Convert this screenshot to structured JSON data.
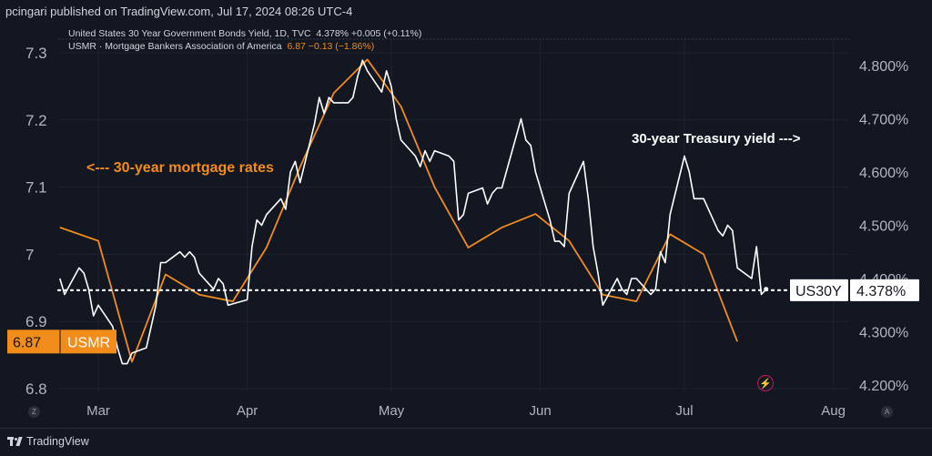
{
  "header": {
    "published": "pcingari published on TradingView.com, Jul 17, 2024 08:26 UTC-4"
  },
  "legend": {
    "us30y_name": "United States 30 Year Government Bonds Yield, 1D, TVC",
    "us30y_value": "4.378% +0.005 (+0.11%)",
    "usmr_name": "USMR · Mortgage Bankers Association of America",
    "usmr_value": "6.87 −0.13 (−1.86%)"
  },
  "annotations": {
    "mortgage": "<--- 30-year mortgage rates",
    "treasury": "30-year Treasury yield --->"
  },
  "badges": {
    "usmr_value": "6.87",
    "usmr_label": "USMR",
    "us30y_label": "US30Y",
    "us30y_value": "4.378%"
  },
  "footer": {
    "brand": "TradingView"
  },
  "corner_buttons": {
    "left": "Z",
    "right": "A"
  },
  "colors": {
    "background": "#131722",
    "treasury": "#ffffff",
    "mortgage": "#f28c1b",
    "grid": "#1f2330"
  },
  "chart_data": {
    "type": "line",
    "x_labels": [
      "Mar",
      "Apr",
      "May",
      "Jun",
      "Jul",
      "Aug"
    ],
    "left_axis": {
      "ticks": [
        "7.3",
        "7.2",
        "7.1",
        "7",
        "6.9",
        "6.8"
      ],
      "range": [
        6.8,
        7.3
      ]
    },
    "right_axis": {
      "ticks": [
        "4.800%",
        "4.700%",
        "4.600%",
        "4.500%",
        "4.400%",
        "4.300%",
        "4.200%"
      ],
      "range": [
        4.2,
        4.8
      ]
    },
    "grid": true,
    "series": [
      {
        "name": "USMR",
        "axis": "left",
        "color": "#f28c1b",
        "points": [
          [
            "2024-02-22",
            7.04
          ],
          [
            "2024-03-01",
            7.02
          ],
          [
            "2024-03-08",
            6.84
          ],
          [
            "2024-03-15",
            6.97
          ],
          [
            "2024-03-22",
            6.94
          ],
          [
            "2024-03-29",
            6.93
          ],
          [
            "2024-04-05",
            7.01
          ],
          [
            "2024-04-12",
            7.13
          ],
          [
            "2024-04-19",
            7.24
          ],
          [
            "2024-04-26",
            7.29
          ],
          [
            "2024-05-03",
            7.22
          ],
          [
            "2024-05-10",
            7.1
          ],
          [
            "2024-05-17",
            7.01
          ],
          [
            "2024-05-24",
            7.04
          ],
          [
            "2024-05-31",
            7.06
          ],
          [
            "2024-06-07",
            7.02
          ],
          [
            "2024-06-14",
            6.94
          ],
          [
            "2024-06-21",
            6.93
          ],
          [
            "2024-06-28",
            7.03
          ],
          [
            "2024-07-05",
            7.0
          ],
          [
            "2024-07-12",
            6.87
          ]
        ]
      },
      {
        "name": "US30Y",
        "axis": "right",
        "color": "#ffffff",
        "points": [
          [
            "2024-02-22",
            4.4
          ],
          [
            "2024-02-23",
            4.37
          ],
          [
            "2024-02-26",
            4.42
          ],
          [
            "2024-02-27",
            4.41
          ],
          [
            "2024-02-28",
            4.38
          ],
          [
            "2024-02-29",
            4.33
          ],
          [
            "2024-03-01",
            4.35
          ],
          [
            "2024-03-04",
            4.31
          ],
          [
            "2024-03-05",
            4.27
          ],
          [
            "2024-03-06",
            4.24
          ],
          [
            "2024-03-07",
            4.24
          ],
          [
            "2024-03-08",
            4.26
          ],
          [
            "2024-03-11",
            4.27
          ],
          [
            "2024-03-12",
            4.31
          ],
          [
            "2024-03-13",
            4.35
          ],
          [
            "2024-03-14",
            4.43
          ],
          [
            "2024-03-15",
            4.43
          ],
          [
            "2024-03-18",
            4.45
          ],
          [
            "2024-03-19",
            4.44
          ],
          [
            "2024-03-20",
            4.45
          ],
          [
            "2024-03-21",
            4.44
          ],
          [
            "2024-03-22",
            4.41
          ],
          [
            "2024-03-25",
            4.38
          ],
          [
            "2024-03-26",
            4.4
          ],
          [
            "2024-03-27",
            4.39
          ],
          [
            "2024-03-28",
            4.35
          ],
          [
            "2024-04-01",
            4.36
          ],
          [
            "2024-04-02",
            4.46
          ],
          [
            "2024-04-03",
            4.51
          ],
          [
            "2024-04-04",
            4.5
          ],
          [
            "2024-04-05",
            4.52
          ],
          [
            "2024-04-08",
            4.55
          ],
          [
            "2024-04-09",
            4.53
          ],
          [
            "2024-04-10",
            4.6
          ],
          [
            "2024-04-11",
            4.62
          ],
          [
            "2024-04-12",
            4.58
          ],
          [
            "2024-04-15",
            4.69
          ],
          [
            "2024-04-16",
            4.74
          ],
          [
            "2024-04-17",
            4.71
          ],
          [
            "2024-04-18",
            4.74
          ],
          [
            "2024-04-19",
            4.73
          ],
          [
            "2024-04-22",
            4.73
          ],
          [
            "2024-04-23",
            4.74
          ],
          [
            "2024-04-24",
            4.78
          ],
          [
            "2024-04-25",
            4.81
          ],
          [
            "2024-04-26",
            4.79
          ],
          [
            "2024-04-29",
            4.75
          ],
          [
            "2024-04-30",
            4.79
          ],
          [
            "2024-05-01",
            4.76
          ],
          [
            "2024-05-02",
            4.7
          ],
          [
            "2024-05-03",
            4.66
          ],
          [
            "2024-05-06",
            4.63
          ],
          [
            "2024-05-07",
            4.61
          ],
          [
            "2024-05-08",
            4.64
          ],
          [
            "2024-05-09",
            4.62
          ],
          [
            "2024-05-10",
            4.64
          ],
          [
            "2024-05-13",
            4.63
          ],
          [
            "2024-05-14",
            4.62
          ],
          [
            "2024-05-15",
            4.51
          ],
          [
            "2024-05-16",
            4.52
          ],
          [
            "2024-05-17",
            4.56
          ],
          [
            "2024-05-20",
            4.57
          ],
          [
            "2024-05-21",
            4.54
          ],
          [
            "2024-05-22",
            4.56
          ],
          [
            "2024-05-23",
            4.57
          ],
          [
            "2024-05-24",
            4.57
          ],
          [
            "2024-05-28",
            4.7
          ],
          [
            "2024-05-29",
            4.66
          ],
          [
            "2024-05-30",
            4.65
          ],
          [
            "2024-05-31",
            4.6
          ],
          [
            "2024-06-03",
            4.51
          ],
          [
            "2024-06-04",
            4.47
          ],
          [
            "2024-06-05",
            4.47
          ],
          [
            "2024-06-06",
            4.46
          ],
          [
            "2024-06-07",
            4.56
          ],
          [
            "2024-06-10",
            4.62
          ],
          [
            "2024-06-11",
            4.55
          ],
          [
            "2024-06-12",
            4.46
          ],
          [
            "2024-06-13",
            4.41
          ],
          [
            "2024-06-14",
            4.35
          ],
          [
            "2024-06-17",
            4.4
          ],
          [
            "2024-06-18",
            4.38
          ],
          [
            "2024-06-19",
            4.37
          ],
          [
            "2024-06-20",
            4.4
          ],
          [
            "2024-06-21",
            4.4
          ],
          [
            "2024-06-24",
            4.37
          ],
          [
            "2024-06-25",
            4.38
          ],
          [
            "2024-06-26",
            4.45
          ],
          [
            "2024-06-27",
            4.43
          ],
          [
            "2024-06-28",
            4.52
          ],
          [
            "2024-07-01",
            4.63
          ],
          [
            "2024-07-02",
            4.6
          ],
          [
            "2024-07-03",
            4.55
          ],
          [
            "2024-07-05",
            4.55
          ],
          [
            "2024-07-08",
            4.49
          ],
          [
            "2024-07-09",
            4.48
          ],
          [
            "2024-07-10",
            4.5
          ],
          [
            "2024-07-11",
            4.49
          ],
          [
            "2024-07-12",
            4.42
          ],
          [
            "2024-07-15",
            4.4
          ],
          [
            "2024-07-16",
            4.46
          ],
          [
            "2024-07-17",
            4.37
          ],
          [
            "2024-07-18",
            4.38
          ]
        ]
      }
    ],
    "reference_lines": [
      {
        "label": "US30Y",
        "value": 4.378,
        "style": "dotted"
      }
    ]
  }
}
